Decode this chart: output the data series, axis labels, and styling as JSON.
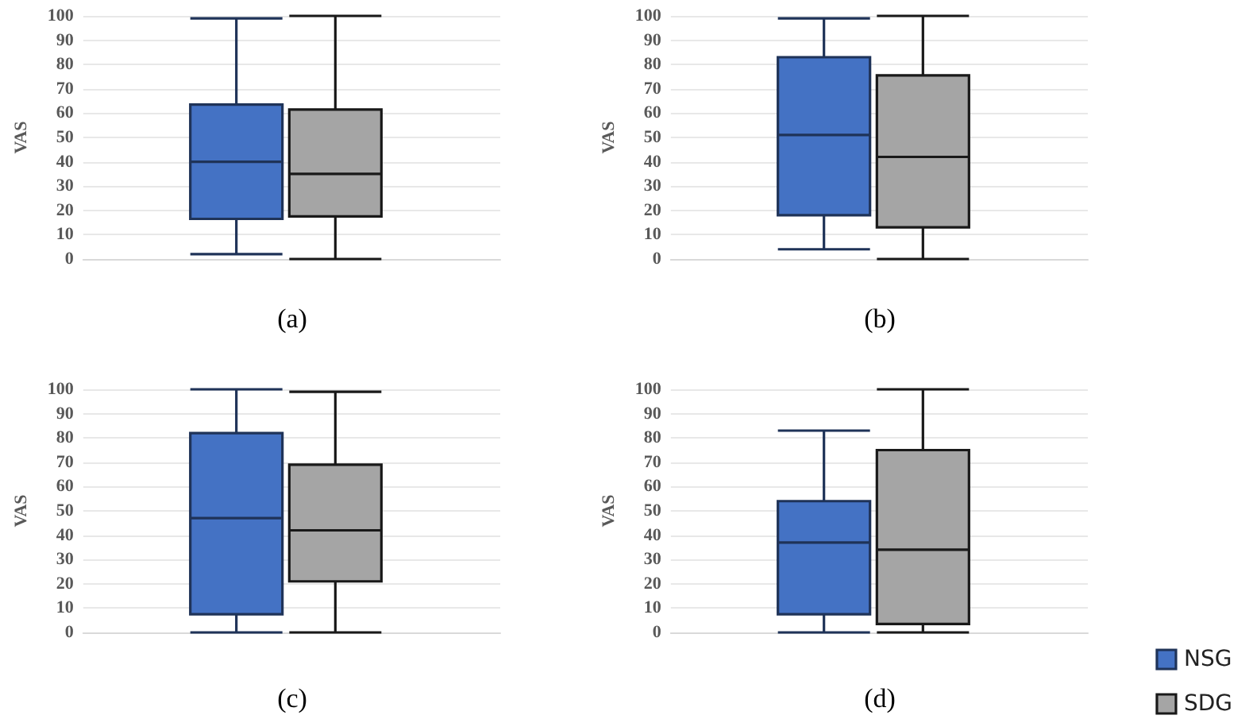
{
  "chart_data": [
    {
      "type": "box",
      "title": "(a)",
      "ylabel": "VAS",
      "categories": [
        null
      ],
      "ylim": [
        0,
        100
      ],
      "yticks": [
        0,
        10,
        20,
        30,
        40,
        50,
        60,
        70,
        80,
        90,
        100
      ],
      "grid": "y",
      "legend": false,
      "series": [
        {
          "color": "#4472c4",
          "boxes": [
            {
              "low": 2,
              "q1": 16.5,
              "median": 40,
              "q3": 63.5,
              "high": 99
            }
          ]
        },
        {
          "color": "#a5a5a5",
          "boxes": [
            {
              "low": 0,
              "q1": 17.5,
              "median": 35,
              "q3": 61.5,
              "high": 100
            }
          ]
        }
      ]
    },
    {
      "type": "box",
      "title": "(b)",
      "ylabel": "VAS",
      "categories": [
        null
      ],
      "ylim": [
        0,
        100
      ],
      "yticks": [
        0,
        10,
        20,
        30,
        40,
        50,
        60,
        70,
        80,
        90,
        100
      ],
      "grid": "y",
      "legend": false,
      "series": [
        {
          "color": "#4472c4",
          "boxes": [
            {
              "low": 4,
              "q1": 18,
              "median": 51,
              "q3": 83,
              "high": 99
            }
          ]
        },
        {
          "color": "#a5a5a5",
          "boxes": [
            {
              "low": 0,
              "q1": 13,
              "median": 42,
              "q3": 75.5,
              "high": 100
            }
          ]
        }
      ]
    },
    {
      "type": "box",
      "title": "(c)",
      "ylabel": "VAS",
      "categories": [
        null
      ],
      "ylim": [
        0,
        100
      ],
      "yticks": [
        0,
        10,
        20,
        30,
        40,
        50,
        60,
        70,
        80,
        90,
        100
      ],
      "grid": "y",
      "legend": false,
      "series": [
        {
          "color": "#4472c4",
          "boxes": [
            {
              "low": 0,
              "q1": 7.5,
              "median": 47,
              "q3": 82,
              "high": 100
            }
          ]
        },
        {
          "color": "#a5a5a5",
          "boxes": [
            {
              "low": 0,
              "q1": 21,
              "median": 42,
              "q3": 69,
              "high": 99
            }
          ]
        }
      ]
    },
    {
      "type": "box",
      "title": "(d)",
      "ylabel": "VAS",
      "categories": [
        null
      ],
      "ylim": [
        0,
        100
      ],
      "yticks": [
        0,
        10,
        20,
        30,
        40,
        50,
        60,
        70,
        80,
        90,
        100
      ],
      "grid": "y",
      "legend": "bottom right",
      "series": [
        {
          "name": "NSG",
          "color": "#4472c4",
          "boxes": [
            {
              "low": 0,
              "q1": 7.5,
              "median": 37,
              "q3": 54,
              "high": 83
            }
          ]
        },
        {
          "name": "SDG",
          "color": "#a5a5a5",
          "boxes": [
            {
              "low": 0,
              "q1": 3.5,
              "median": 34,
              "q3": 75,
              "high": 100
            }
          ]
        }
      ]
    }
  ]
}
